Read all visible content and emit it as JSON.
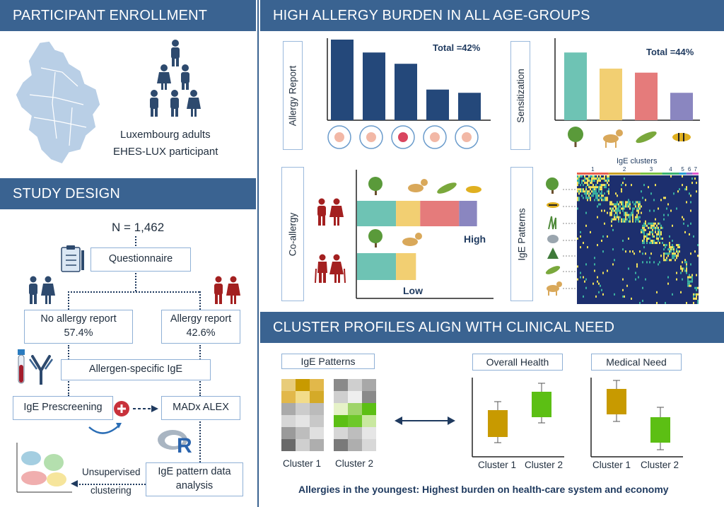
{
  "panels": {
    "enrollment": "PARTICIPANT ENROLLMENT",
    "study_design": "STUDY DESIGN",
    "burden": "HIGH ALLERGY BURDEN IN ALL AGE-GROUPS",
    "clusters": "CLUSTER PROFILES ALIGN WITH CLINICAL NEED"
  },
  "enrollment": {
    "line1": "Luxembourg adults",
    "line2": "EHES-LUX participant"
  },
  "design": {
    "n": "N = 1,462",
    "questionnaire": "Questionnaire",
    "no_allergy": "No allergy report",
    "no_allergy_pct": "57.4%",
    "allergy": "Allergy report",
    "allergy_pct": "42.6%",
    "ige": "Allergen-specific IgE",
    "prescreen": "IgE Prescreening",
    "madx": "MADx ALEX",
    "analysis_line1": "IgE pattern data",
    "analysis_line2": "analysis",
    "unsup_line1": "Unsupervised",
    "unsup_line2": "clustering",
    "r_logo": "R"
  },
  "burden": {
    "allergy_report": {
      "label": "Allergy Report",
      "total": "Total =42%",
      "values": [
        1.0,
        0.84,
        0.7,
        0.38,
        0.34
      ],
      "color": "#24487a",
      "icons": [
        "nose-icon",
        "arm-icon",
        "eye-icon",
        "gut-icon",
        "lung-icon"
      ]
    },
    "sensitization": {
      "label": "Sensitization",
      "total": "Total =44%",
      "values": [
        0.84,
        0.64,
        0.59,
        0.34
      ],
      "colors": [
        "#6ec3b4",
        "#f2cf72",
        "#e57b7b",
        "#8a86c0"
      ],
      "icons": [
        "tree-icon",
        "dog-icon",
        "leaf-icon",
        "wasp-icon"
      ]
    },
    "coallergy": {
      "label": "Co-allergy",
      "high": "High",
      "low": "Low",
      "high_segments": [
        0.37,
        0.23,
        0.37,
        0.17
      ],
      "low_segments": [
        0.37,
        0.19
      ],
      "colors": [
        "#6ec3b4",
        "#f2cf72",
        "#e57b7b",
        "#8a86c0"
      ]
    },
    "patterns": {
      "label": "IgE Patterns",
      "title": "IgE clusters",
      "clusters": [
        "1",
        "2",
        "3",
        "4",
        "5",
        "6",
        "7"
      ],
      "cluster_colors": [
        "#e8604c",
        "#c9a227",
        "#7cc242",
        "#3cb371",
        "#2a9fd6",
        "#8a6fd1",
        "#e05bd0"
      ],
      "cluster_widths": [
        0.26,
        0.26,
        0.18,
        0.14,
        0.06,
        0.05,
        0.05
      ]
    }
  },
  "clusters": {
    "ige_patterns": "IgE Patterns",
    "overall_health": "Overall Health",
    "medical_need": "Medical Need",
    "cluster1": "Cluster 1",
    "cluster2": "Cluster 2",
    "footer": "Allergies in the youngest: Highest burden on health-care system and economy",
    "colors": {
      "c1": "#c89a00",
      "c2": "#5cbf14"
    }
  }
}
